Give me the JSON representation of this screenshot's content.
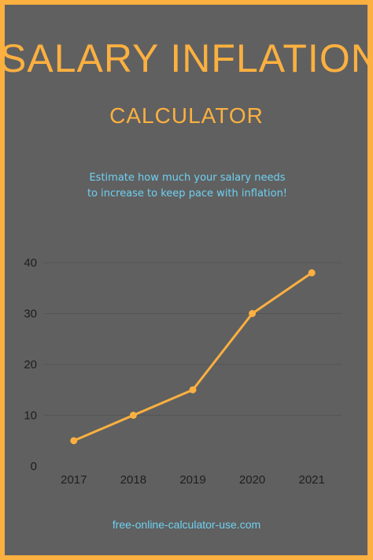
{
  "header": {
    "title": "SALARY INFLATION",
    "subtitle": "CALCULATOR",
    "tagline": "Estimate how much your salary needs to increase to keep pace with inflation!"
  },
  "footer": {
    "url": "free-online-calculator-use.com"
  },
  "colors": {
    "border": "#fbb040",
    "background": "#606060",
    "line": "#fbb040",
    "accent_text": "#6ed1f2",
    "gridline": "#555555"
  },
  "chart_data": {
    "type": "line",
    "categories": [
      "2017",
      "2018",
      "2019",
      "2020",
      "2021"
    ],
    "series": [
      {
        "values": [
          5,
          10,
          15,
          30,
          38
        ]
      }
    ],
    "yticks": [
      "0",
      "10",
      "20",
      "30",
      "40"
    ],
    "ylim": [
      0,
      40
    ],
    "grid": true,
    "title": "",
    "xlabel": "",
    "ylabel": ""
  }
}
